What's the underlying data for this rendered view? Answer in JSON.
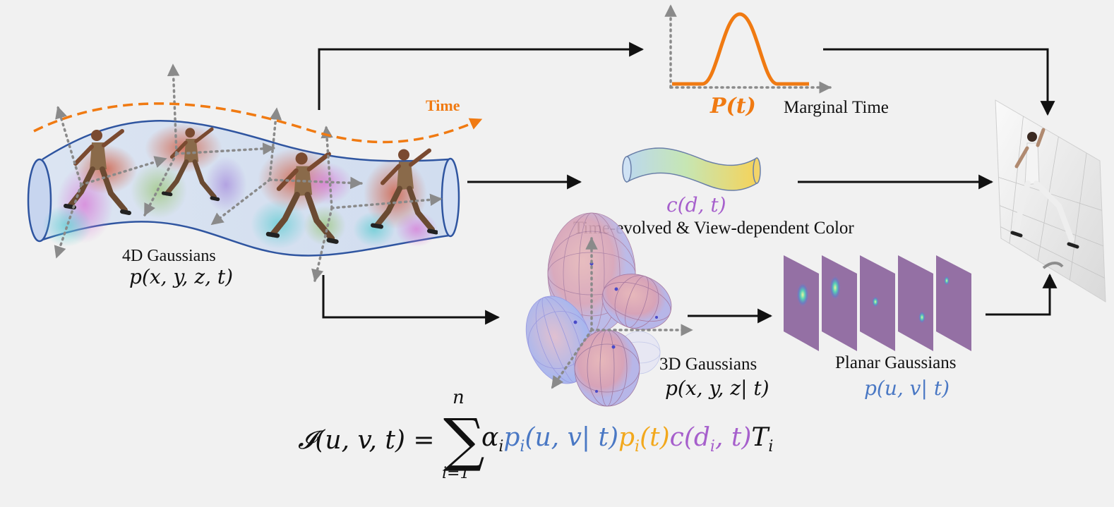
{
  "labels": {
    "time": "Time",
    "gaussians_4d_title": "4D Gaussians",
    "gaussians_4d_formula": "p(x, y, z, t)",
    "marginal_formula": "P(t)",
    "marginal_title": "Marginal Time",
    "color_formula": "c(d, t)",
    "color_title": "Time-evolved & View-dependent Color",
    "gaussians_3d_title": "3D Gaussians",
    "gaussians_3d_formula": "p(x, y, z| t)",
    "planar_title": "Planar Gaussians",
    "planar_formula": "p(u, v| t)"
  },
  "equation": {
    "lhs": "𝓘(u, v, t) =",
    "sum_top": "n",
    "sum_bottom": "i=1",
    "alpha": "α",
    "alpha_sub": "i",
    "p_spatial": "p",
    "p_spatial_sub": "i",
    "p_spatial_args": "(u, v| t)",
    "p_time": "p",
    "p_time_sub": "i",
    "p_time_args": "(t)",
    "color_head": "c(d",
    "color_sub": "i",
    "color_tail": ", t)",
    "transmit": "T",
    "transmit_sub": "i"
  },
  "colors": {
    "orange": "#f07a12",
    "purple": "#a65fcc",
    "blue": "#4a78c4",
    "gold": "#f2a81c",
    "tube_stroke": "#2f55a0",
    "arrow": "#111111",
    "dotted": "#8a8a8a"
  },
  "icons": {
    "figures": "sprinting-person-icon",
    "plane": "rendered-image-plane-icon"
  }
}
